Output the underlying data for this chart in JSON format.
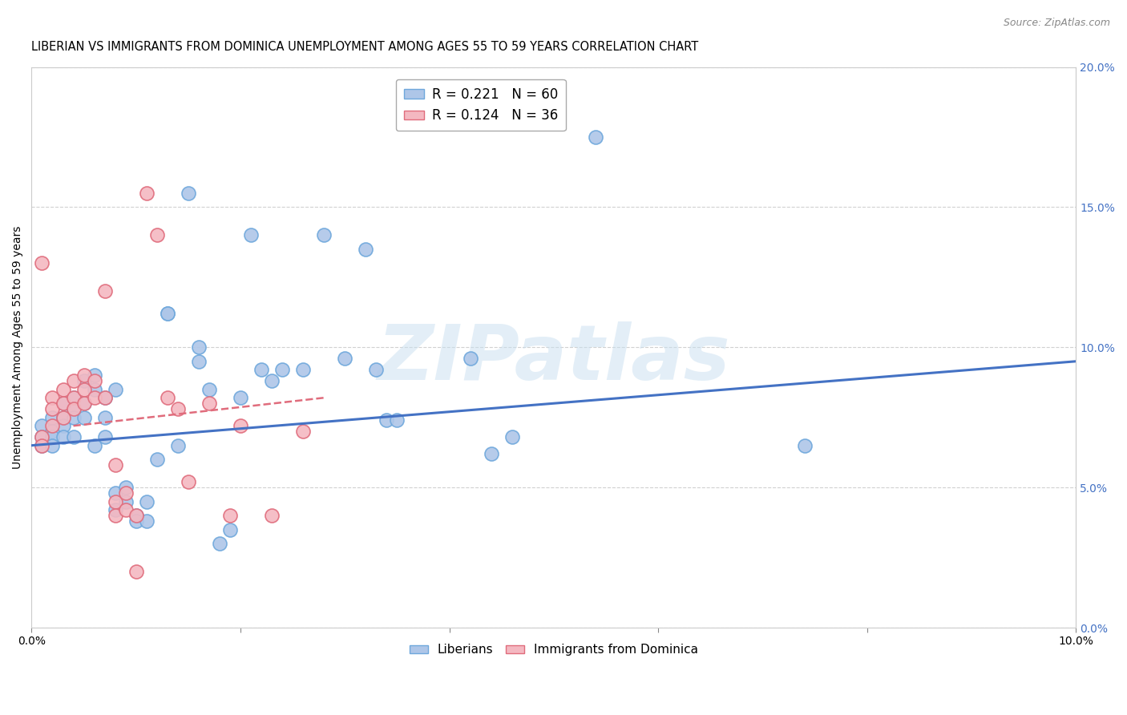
{
  "title": "LIBERIAN VS IMMIGRANTS FROM DOMINICA UNEMPLOYMENT AMONG AGES 55 TO 59 YEARS CORRELATION CHART",
  "source": "Source: ZipAtlas.com",
  "ylabel": "Unemployment Among Ages 55 to 59 years",
  "xlim": [
    0.0,
    0.1
  ],
  "ylim": [
    0.0,
    0.2
  ],
  "xticks": [
    0.0,
    0.02,
    0.04,
    0.06,
    0.08,
    0.1
  ],
  "yticks": [
    0.0,
    0.05,
    0.1,
    0.15,
    0.2
  ],
  "xtick_labels": [
    "0.0%",
    "",
    "",
    "",
    "",
    "10.0%"
  ],
  "ytick_labels_right": [
    "0.0%",
    "5.0%",
    "10.0%",
    "15.0%",
    "20.0%"
  ],
  "legend_items": [
    {
      "label": "R = 0.221   N = 60",
      "color": "#aec6e8",
      "edge": "#6fa8dc"
    },
    {
      "label": "R = 0.124   N = 36",
      "color": "#f4b8c1",
      "edge": "#e06c7c"
    }
  ],
  "legend_labels_bottom": [
    "Liberians",
    "Immigrants from Dominica"
  ],
  "watermark": "ZIPatlas",
  "blue_scatter": [
    [
      0.001,
      0.072
    ],
    [
      0.001,
      0.068
    ],
    [
      0.001,
      0.065
    ],
    [
      0.002,
      0.075
    ],
    [
      0.002,
      0.07
    ],
    [
      0.002,
      0.068
    ],
    [
      0.002,
      0.065
    ],
    [
      0.003,
      0.08
    ],
    [
      0.003,
      0.075
    ],
    [
      0.003,
      0.072
    ],
    [
      0.003,
      0.068
    ],
    [
      0.004,
      0.082
    ],
    [
      0.004,
      0.078
    ],
    [
      0.004,
      0.075
    ],
    [
      0.004,
      0.068
    ],
    [
      0.005,
      0.088
    ],
    [
      0.005,
      0.08
    ],
    [
      0.005,
      0.075
    ],
    [
      0.006,
      0.09
    ],
    [
      0.006,
      0.085
    ],
    [
      0.006,
      0.065
    ],
    [
      0.007,
      0.082
    ],
    [
      0.007,
      0.075
    ],
    [
      0.007,
      0.068
    ],
    [
      0.008,
      0.085
    ],
    [
      0.008,
      0.048
    ],
    [
      0.008,
      0.042
    ],
    [
      0.009,
      0.05
    ],
    [
      0.009,
      0.045
    ],
    [
      0.01,
      0.04
    ],
    [
      0.01,
      0.038
    ],
    [
      0.011,
      0.038
    ],
    [
      0.011,
      0.045
    ],
    [
      0.012,
      0.06
    ],
    [
      0.013,
      0.112
    ],
    [
      0.013,
      0.112
    ],
    [
      0.014,
      0.065
    ],
    [
      0.015,
      0.155
    ],
    [
      0.016,
      0.1
    ],
    [
      0.016,
      0.095
    ],
    [
      0.017,
      0.085
    ],
    [
      0.018,
      0.03
    ],
    [
      0.019,
      0.035
    ],
    [
      0.02,
      0.082
    ],
    [
      0.021,
      0.14
    ],
    [
      0.022,
      0.092
    ],
    [
      0.023,
      0.088
    ],
    [
      0.024,
      0.092
    ],
    [
      0.026,
      0.092
    ],
    [
      0.028,
      0.14
    ],
    [
      0.03,
      0.096
    ],
    [
      0.032,
      0.135
    ],
    [
      0.033,
      0.092
    ],
    [
      0.034,
      0.074
    ],
    [
      0.035,
      0.074
    ],
    [
      0.042,
      0.096
    ],
    [
      0.044,
      0.062
    ],
    [
      0.046,
      0.068
    ],
    [
      0.054,
      0.175
    ],
    [
      0.074,
      0.065
    ]
  ],
  "pink_scatter": [
    [
      0.001,
      0.068
    ],
    [
      0.001,
      0.065
    ],
    [
      0.001,
      0.13
    ],
    [
      0.002,
      0.082
    ],
    [
      0.002,
      0.078
    ],
    [
      0.002,
      0.072
    ],
    [
      0.003,
      0.085
    ],
    [
      0.003,
      0.08
    ],
    [
      0.003,
      0.075
    ],
    [
      0.004,
      0.088
    ],
    [
      0.004,
      0.082
    ],
    [
      0.004,
      0.078
    ],
    [
      0.005,
      0.09
    ],
    [
      0.005,
      0.085
    ],
    [
      0.005,
      0.08
    ],
    [
      0.006,
      0.088
    ],
    [
      0.006,
      0.082
    ],
    [
      0.007,
      0.12
    ],
    [
      0.007,
      0.082
    ],
    [
      0.008,
      0.058
    ],
    [
      0.008,
      0.045
    ],
    [
      0.008,
      0.04
    ],
    [
      0.009,
      0.048
    ],
    [
      0.009,
      0.042
    ],
    [
      0.01,
      0.04
    ],
    [
      0.01,
      0.02
    ],
    [
      0.011,
      0.155
    ],
    [
      0.012,
      0.14
    ],
    [
      0.013,
      0.082
    ],
    [
      0.014,
      0.078
    ],
    [
      0.015,
      0.052
    ],
    [
      0.017,
      0.08
    ],
    [
      0.019,
      0.04
    ],
    [
      0.02,
      0.072
    ],
    [
      0.023,
      0.04
    ],
    [
      0.026,
      0.07
    ]
  ],
  "blue_line_x": [
    0.0,
    0.1
  ],
  "blue_line_y": [
    0.065,
    0.095
  ],
  "pink_line_x": [
    0.004,
    0.028
  ],
  "pink_line_y": [
    0.072,
    0.082
  ],
  "blue_color": "#aec6e8",
  "blue_edge": "#6fa8dc",
  "pink_color": "#f4b8c1",
  "pink_edge": "#e06c7c",
  "blue_line_color": "#4472c4",
  "pink_line_color": "#e06c7c",
  "background_color": "#ffffff",
  "grid_color": "#cccccc",
  "title_fontsize": 10.5,
  "axis_label_fontsize": 10,
  "tick_fontsize": 10,
  "right_tick_color": "#4472c4"
}
